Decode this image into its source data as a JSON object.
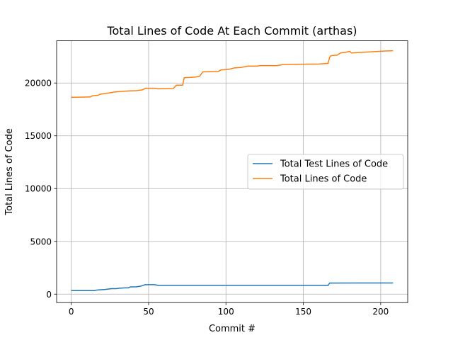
{
  "chart_data": {
    "type": "line",
    "title": "Total Lines of Code At Each Commit (arthas)",
    "xlabel": "Commit #",
    "ylabel": "Total Lines of Code",
    "xlim": [
      -9.45,
      217.45
    ],
    "ylim": [
      -800,
      24000
    ],
    "xticks": [
      0,
      50,
      100,
      150,
      200
    ],
    "yticks": [
      0,
      5000,
      10000,
      15000,
      20000
    ],
    "grid": true,
    "legend": "center-right",
    "series": [
      {
        "name": "Total Test Lines of Code",
        "color": "#1f77b4",
        "points": [
          [
            0,
            340
          ],
          [
            15,
            340
          ],
          [
            17,
            400
          ],
          [
            22,
            450
          ],
          [
            26,
            520
          ],
          [
            29,
            520
          ],
          [
            31,
            560
          ],
          [
            35,
            600
          ],
          [
            37,
            600
          ],
          [
            38,
            680
          ],
          [
            42,
            700
          ],
          [
            45,
            760
          ],
          [
            47,
            860
          ],
          [
            48,
            900
          ],
          [
            54,
            900
          ],
          [
            56,
            830
          ],
          [
            100,
            830
          ],
          [
            166,
            830
          ],
          [
            167,
            1050
          ],
          [
            208,
            1060
          ]
        ]
      },
      {
        "name": "Total Lines of Code",
        "color": "#ff7f0e",
        "points": [
          [
            0,
            18650
          ],
          [
            12,
            18680
          ],
          [
            14,
            18800
          ],
          [
            17,
            18830
          ],
          [
            19,
            18950
          ],
          [
            24,
            19050
          ],
          [
            28,
            19150
          ],
          [
            32,
            19200
          ],
          [
            37,
            19250
          ],
          [
            42,
            19280
          ],
          [
            46,
            19350
          ],
          [
            48,
            19500
          ],
          [
            55,
            19500
          ],
          [
            56,
            19450
          ],
          [
            66,
            19480
          ],
          [
            68,
            19800
          ],
          [
            72,
            19800
          ],
          [
            73,
            20500
          ],
          [
            80,
            20560
          ],
          [
            83,
            20650
          ],
          [
            85,
            21050
          ],
          [
            95,
            21100
          ],
          [
            97,
            21250
          ],
          [
            102,
            21300
          ],
          [
            105,
            21420
          ],
          [
            110,
            21480
          ],
          [
            114,
            21600
          ],
          [
            120,
            21600
          ],
          [
            122,
            21650
          ],
          [
            133,
            21650
          ],
          [
            137,
            21750
          ],
          [
            146,
            21780
          ],
          [
            160,
            21800
          ],
          [
            165,
            21850
          ],
          [
            166,
            21850
          ],
          [
            167,
            22450
          ],
          [
            168,
            22600
          ],
          [
            172,
            22650
          ],
          [
            174,
            22850
          ],
          [
            177,
            22900
          ],
          [
            180,
            23000
          ],
          [
            181,
            22850
          ],
          [
            187,
            22900
          ],
          [
            193,
            22950
          ],
          [
            199,
            23000
          ],
          [
            203,
            23030
          ],
          [
            208,
            23060
          ]
        ]
      }
    ]
  }
}
